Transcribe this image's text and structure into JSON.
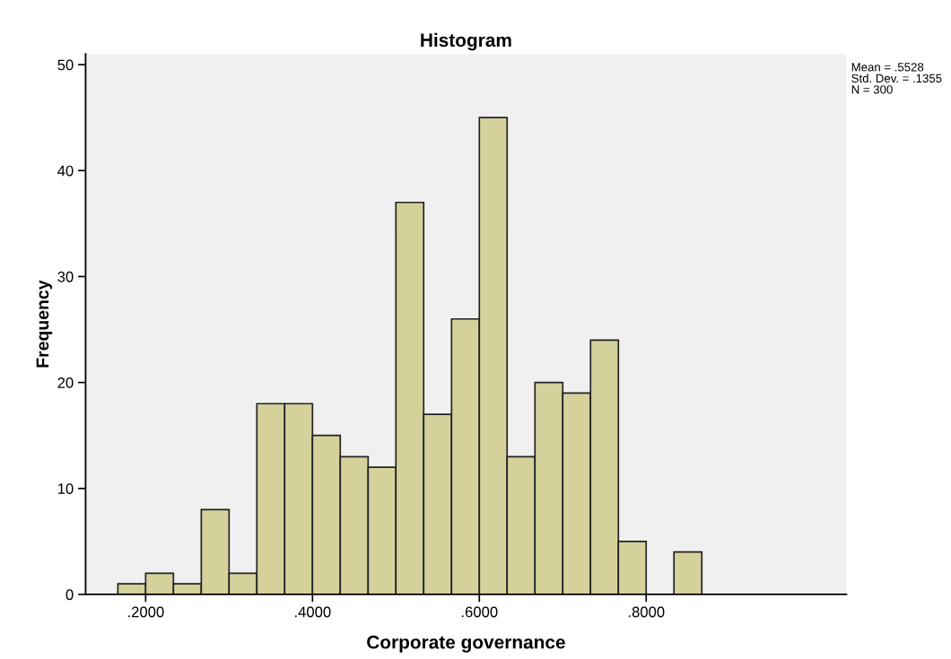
{
  "chart_data": {
    "type": "histogram",
    "title": "Histogram",
    "xlabel": "Corporate governance",
    "ylabel": "Frequency",
    "bins": [
      0.1667,
      0.2,
      0.2333,
      0.2667,
      0.3,
      0.3333,
      0.3667,
      0.4,
      0.4333,
      0.4667,
      0.5,
      0.5333,
      0.5667,
      0.6,
      0.6333,
      0.6667,
      0.7,
      0.7333,
      0.7667,
      0.8,
      0.8333,
      0.8667
    ],
    "values": [
      1,
      2,
      1,
      8,
      2,
      18,
      18,
      15,
      13,
      12,
      37,
      17,
      26,
      45,
      13,
      20,
      19,
      24,
      5,
      0,
      4
    ],
    "color": "#d4d19b",
    "xlim": [
      0.128,
      1.04
    ],
    "xticks": [
      {
        "value": 0.2,
        "label": ".2000"
      },
      {
        "value": 0.4,
        "label": ".4000"
      },
      {
        "value": 0.6,
        "label": ".6000"
      },
      {
        "value": 0.8,
        "label": ".8000"
      }
    ],
    "ylim": [
      0,
      51
    ],
    "yticks": [
      0,
      10,
      20,
      30,
      40,
      50
    ],
    "grid": false,
    "legend": false,
    "annotations": [
      "Mean = .5528",
      "Std. Dev. = .1355",
      "N = 300"
    ]
  }
}
